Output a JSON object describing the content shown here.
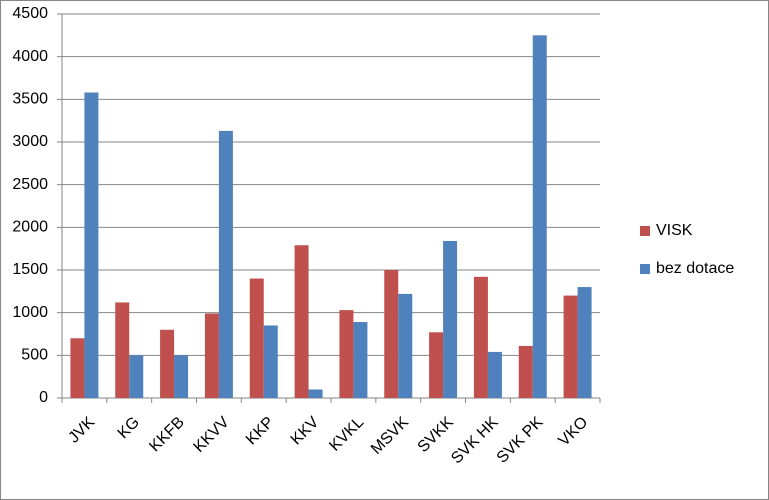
{
  "chart_data": {
    "type": "bar",
    "categories": [
      "JVK",
      "KG",
      "KKFB",
      "KKVV",
      "KKP",
      "KKV",
      "KVKL",
      "MSVK",
      "SVKK",
      "SVK HK",
      "SVK PK",
      "VKO"
    ],
    "series": [
      {
        "name": "VISK",
        "color": "#c0504d",
        "values": [
          700,
          1120,
          800,
          990,
          1400,
          1790,
          1030,
          1500,
          770,
          1420,
          610,
          1200
        ]
      },
      {
        "name": "bez dotace",
        "color": "#4f81bd",
        "values": [
          3580,
          500,
          500,
          3130,
          850,
          100,
          890,
          1220,
          1840,
          540,
          4250,
          1300
        ]
      }
    ],
    "ylim": [
      0,
      4500
    ],
    "yticks": [
      0,
      500,
      1000,
      1500,
      2000,
      2500,
      3000,
      3500,
      4000,
      4500
    ],
    "grid": true,
    "legend": "right"
  }
}
